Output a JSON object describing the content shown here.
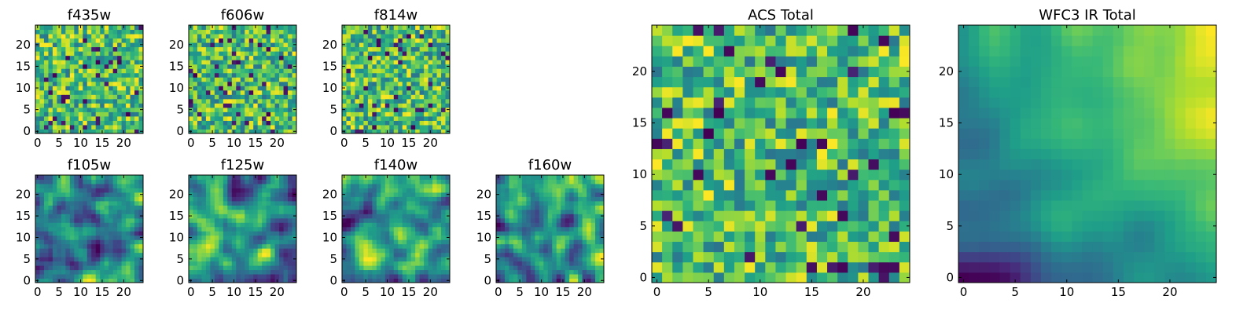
{
  "chart_data": [
    {
      "type": "heatmap",
      "title": "f435w",
      "xticks": [
        "0",
        "5",
        "10",
        "15",
        "20"
      ],
      "yticks": [
        "0",
        "5",
        "10",
        "15",
        "20"
      ],
      "grid_size": 25,
      "seed": 11,
      "smooth": 0,
      "colormap": "viridis"
    },
    {
      "type": "heatmap",
      "title": "f606w",
      "xticks": [
        "0",
        "5",
        "10",
        "15",
        "20"
      ],
      "yticks": [
        "0",
        "5",
        "10",
        "15",
        "20"
      ],
      "grid_size": 25,
      "seed": 23,
      "smooth": 0,
      "colormap": "viridis"
    },
    {
      "type": "heatmap",
      "title": "f814w",
      "xticks": [
        "0",
        "5",
        "10",
        "15",
        "20"
      ],
      "yticks": [
        "0",
        "5",
        "10",
        "15",
        "20"
      ],
      "grid_size": 25,
      "seed": 37,
      "smooth": 0,
      "colormap": "viridis"
    },
    {
      "type": "heatmap",
      "title": "f105w",
      "xticks": [
        "0",
        "5",
        "10",
        "15",
        "20"
      ],
      "yticks": [
        "0",
        "5",
        "10",
        "15",
        "20"
      ],
      "grid_size": 25,
      "seed": 41,
      "smooth": 2,
      "colormap": "viridis"
    },
    {
      "type": "heatmap",
      "title": "f125w",
      "xticks": [
        "0",
        "5",
        "10",
        "15",
        "20"
      ],
      "yticks": [
        "0",
        "5",
        "10",
        "15",
        "20"
      ],
      "grid_size": 25,
      "seed": 53,
      "smooth": 2,
      "colormap": "viridis"
    },
    {
      "type": "heatmap",
      "title": "f140w",
      "xticks": [
        "0",
        "5",
        "10",
        "15",
        "20"
      ],
      "yticks": [
        "0",
        "5",
        "10",
        "15",
        "20"
      ],
      "grid_size": 25,
      "seed": 67,
      "smooth": 2,
      "colormap": "viridis"
    },
    {
      "type": "heatmap",
      "title": "f160w",
      "xticks": [
        "0",
        "5",
        "10",
        "15",
        "20"
      ],
      "yticks": [
        "0",
        "5",
        "10",
        "15",
        "20"
      ],
      "grid_size": 25,
      "seed": 79,
      "smooth": 2,
      "colormap": "viridis"
    },
    {
      "type": "heatmap",
      "title": "ACS Total",
      "xticks": [
        "0",
        "5",
        "10",
        "15",
        "20"
      ],
      "yticks": [
        "0",
        "5",
        "10",
        "15",
        "20"
      ],
      "grid_size": 25,
      "seed": 83,
      "smooth": 0,
      "colormap": "viridis"
    },
    {
      "type": "heatmap",
      "title": "WFC3 IR Total",
      "xticks": [
        "0",
        "5",
        "10",
        "15",
        "20"
      ],
      "yticks": [
        "0",
        "5",
        "10",
        "15",
        "20"
      ],
      "grid_size": 25,
      "seed": 97,
      "smooth": 3,
      "gradient": "top-right bright, bottom dark",
      "colormap": "viridis"
    }
  ]
}
